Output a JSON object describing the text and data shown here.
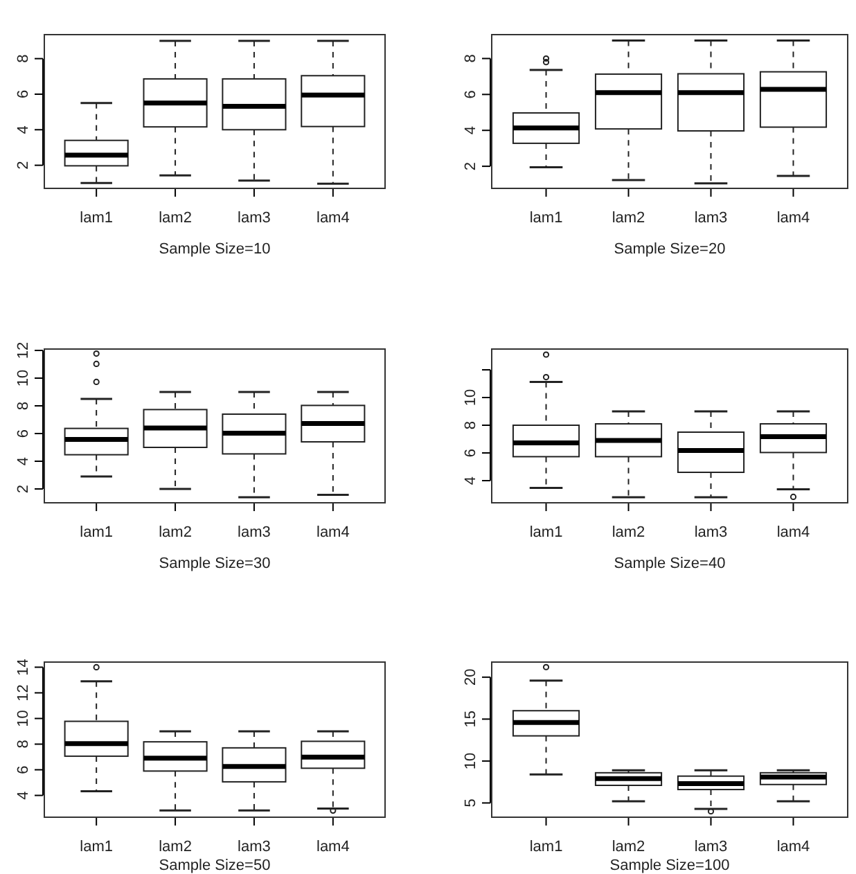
{
  "chart_data": [
    {
      "type": "box",
      "xlabel": "Sample Size=10",
      "categories": [
        "lam1",
        "lam2",
        "lam3",
        "lam4"
      ],
      "ylim": [
        0.7,
        9.35
      ],
      "yticks": [
        2,
        4,
        6,
        8
      ],
      "boxes": [
        {
          "low": 1.0,
          "q1": 1.97,
          "median": 2.57,
          "q3": 3.4,
          "high": 5.5
        },
        {
          "low": 1.43,
          "q1": 4.16,
          "median": 5.5,
          "q3": 6.86,
          "high": 9.0
        },
        {
          "low": 1.14,
          "q1": 4.0,
          "median": 5.32,
          "q3": 6.86,
          "high": 9.0
        },
        {
          "low": 0.96,
          "q1": 4.18,
          "median": 5.95,
          "q3": 7.04,
          "high": 9.0
        }
      ]
    },
    {
      "type": "box",
      "xlabel": "Sample Size=20",
      "categories": [
        "lam1",
        "lam2",
        "lam3",
        "lam4"
      ],
      "ylim": [
        0.77,
        9.33
      ],
      "yticks": [
        2,
        4,
        6,
        8
      ],
      "boxes": [
        {
          "low": 1.95,
          "q1": 3.28,
          "median": 4.13,
          "q3": 4.97,
          "high": 7.36,
          "outliers": [
            8.0,
            7.8
          ]
        },
        {
          "low": 1.23,
          "q1": 4.08,
          "median": 6.1,
          "q3": 7.13,
          "high": 9.0
        },
        {
          "low": 1.05,
          "q1": 3.97,
          "median": 6.1,
          "q3": 7.15,
          "high": 9.0
        },
        {
          "low": 1.46,
          "q1": 4.18,
          "median": 6.28,
          "q3": 7.26,
          "high": 9.0
        }
      ]
    },
    {
      "type": "box",
      "xlabel": "Sample Size=30",
      "categories": [
        "lam1",
        "lam2",
        "lam3",
        "lam4"
      ],
      "ylim": [
        1.0,
        12.1
      ],
      "yticks": [
        2,
        4,
        6,
        8,
        10,
        12
      ],
      "boxes": [
        {
          "low": 2.9,
          "q1": 4.47,
          "median": 5.57,
          "q3": 6.37,
          "high": 8.5,
          "outliers": [
            11.77,
            11.03,
            9.73
          ]
        },
        {
          "low": 2.0,
          "q1": 5.0,
          "median": 6.4,
          "q3": 7.73,
          "high": 9.0
        },
        {
          "low": 1.4,
          "q1": 4.53,
          "median": 6.03,
          "q3": 7.4,
          "high": 9.0
        },
        {
          "low": 1.57,
          "q1": 5.4,
          "median": 6.73,
          "q3": 8.03,
          "high": 9.0
        }
      ]
    },
    {
      "type": "box",
      "xlabel": "Sample Size=40",
      "categories": [
        "lam1",
        "lam2",
        "lam3",
        "lam4"
      ],
      "ylim": [
        2.4,
        13.5
      ],
      "yticks": [
        4,
        6,
        8,
        10,
        {
          "value": 12,
          "label": null
        }
      ],
      "boxes": [
        {
          "low": 3.47,
          "q1": 5.73,
          "median": 6.73,
          "q3": 8.0,
          "high": 11.13,
          "outliers": [
            13.1,
            11.47
          ]
        },
        {
          "low": 2.8,
          "q1": 5.73,
          "median": 6.9,
          "q3": 8.1,
          "high": 9.0
        },
        {
          "low": 2.8,
          "q1": 4.6,
          "median": 6.17,
          "q3": 7.5,
          "high": 9.0
        },
        {
          "low": 3.37,
          "q1": 6.03,
          "median": 7.17,
          "q3": 8.1,
          "high": 9.0,
          "outliers": [
            2.83
          ]
        }
      ]
    },
    {
      "type": "box",
      "xlabel": "Sample Size=50",
      "categories": [
        "lam1",
        "lam2",
        "lam3",
        "lam4"
      ],
      "ylim": [
        2.3,
        14.4
      ],
      "yticks": [
        4,
        6,
        8,
        10,
        12,
        14
      ],
      "boxes": [
        {
          "low": 4.33,
          "q1": 7.06,
          "median": 8.04,
          "q3": 9.78,
          "high": 12.9,
          "outliers": [
            14.0
          ]
        },
        {
          "low": 2.82,
          "q1": 5.9,
          "median": 6.91,
          "q3": 8.18,
          "high": 9.0
        },
        {
          "low": 2.82,
          "q1": 5.06,
          "median": 6.26,
          "q3": 7.71,
          "high": 9.0
        },
        {
          "low": 2.97,
          "q1": 6.12,
          "median": 6.99,
          "q3": 8.22,
          "high": 9.0,
          "outliers": [
            2.82
          ]
        }
      ]
    },
    {
      "type": "box",
      "xlabel": "Sample Size=100",
      "categories": [
        "lam1",
        "lam2",
        "lam3",
        "lam4"
      ],
      "ylim": [
        3.3,
        21.8
      ],
      "yticks": [
        5,
        10,
        15,
        20
      ],
      "boxes": [
        {
          "low": 8.4,
          "q1": 13.0,
          "median": 14.6,
          "q3": 16.0,
          "high": 19.6,
          "outliers": [
            21.2
          ]
        },
        {
          "low": 5.2,
          "q1": 7.1,
          "median": 7.9,
          "q3": 8.6,
          "high": 8.9
        },
        {
          "low": 4.3,
          "q1": 6.6,
          "median": 7.3,
          "q3": 8.2,
          "high": 8.9,
          "outliers": [
            4.0
          ]
        },
        {
          "low": 5.2,
          "q1": 7.2,
          "median": 8.1,
          "q3": 8.6,
          "high": 8.9
        }
      ]
    }
  ]
}
